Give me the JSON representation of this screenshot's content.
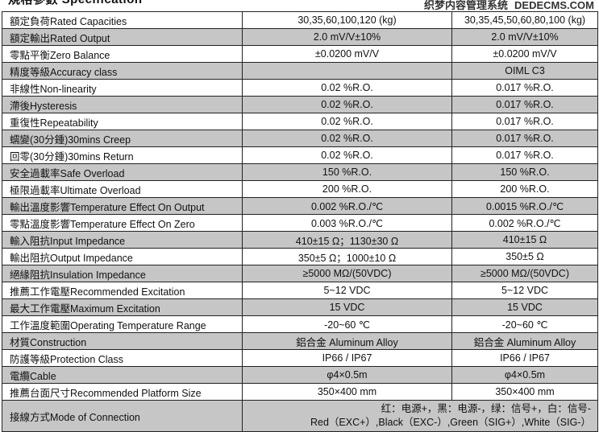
{
  "title": "規格參數 Specification",
  "rows": [
    [
      "額定負荷Rated Capacities",
      "30,35,60,100,120 (kg)",
      "30,35,45,50,60,80,100 (kg)"
    ],
    [
      "額定輸出Rated Output",
      "2.0 mV/V±10%",
      "2.0 mV/V±10%"
    ],
    [
      "零點平衡Zero Balance",
      "±0.0200 mV/V",
      "±0.0200 mV/V"
    ],
    [
      "精度等級Accuracy class",
      "",
      "OIML C3"
    ],
    [
      "非線性Non-linearity",
      "0.02 %R.O.",
      "0.017 %R.O."
    ],
    [
      "滯後Hysteresis",
      "0.02 %R.O.",
      "0.017 %R.O."
    ],
    [
      "重復性Repeatability",
      "0.02 %R.O.",
      "0.017 %R.O."
    ],
    [
      "蠕變(30分鍾)30mins Creep",
      "0.02 %R.O.",
      "0.017 %R.O."
    ],
    [
      "回零(30分鍾)30mins Return",
      "0.02 %R.O.",
      "0.017 %R.O."
    ],
    [
      "安全過載率Safe Overload",
      "150 %R.O.",
      "150 %R.O."
    ],
    [
      "極限過載率Ultimate Overload",
      "200 %R.O.",
      "200 %R.O."
    ],
    [
      "輸出溫度影響Temperature Effect On Output",
      "0.002 %R.O./℃",
      "0.0015 %R.O./℃"
    ],
    [
      "零點溫度影響Temperature Effect On Zero",
      "0.003 %R.O./℃",
      "0.002 %R.O./℃"
    ],
    [
      "輸入阻抗Input Impedance",
      "410±15 Ω；1130±30 Ω",
      "410±15 Ω"
    ],
    [
      "輸出阻抗Output Impedance",
      "350±5 Ω；1000±10 Ω",
      "350±5 Ω"
    ],
    [
      "絕緣阻抗Insulation Impedance",
      "≥5000 MΩ/(50VDC)",
      "≥5000 MΩ/(50VDC)"
    ],
    [
      "推薦工作電壓Recommended Excitation",
      "5~12 VDC",
      "5~12 VDC"
    ],
    [
      "最大工作電壓Maximum Excitation",
      "15 VDC",
      "15 VDC"
    ],
    [
      "工作溫度範圍Operating Temperature Range",
      "-20~60 ℃",
      "-20~60 ℃"
    ],
    [
      "材質Construction",
      "鋁合金 Aluminum Alloy",
      "鋁合金 Aluminum Alloy"
    ],
    [
      "防護等級Protection Class",
      "IP66 / IP67",
      "IP66 / IP67"
    ],
    [
      "電纜Cable",
      "φ4×0.5m",
      "φ4×0.5m"
    ],
    [
      "推薦台面尺寸Recommended Platform Size",
      "350×400 mm",
      "350×400 mm"
    ]
  ],
  "connection": {
    "label": "接線方式Mode of Connection",
    "line1": "红：电源+，黑：电源-，绿：信号+，白：信号-",
    "line2": "Red（EXC+）,Black（EXC-）,Green（SIG+）,White（SIG-）"
  },
  "watermark": {
    "line1": "织梦内容管理系统",
    "line2": "DEDECMS.COM"
  }
}
